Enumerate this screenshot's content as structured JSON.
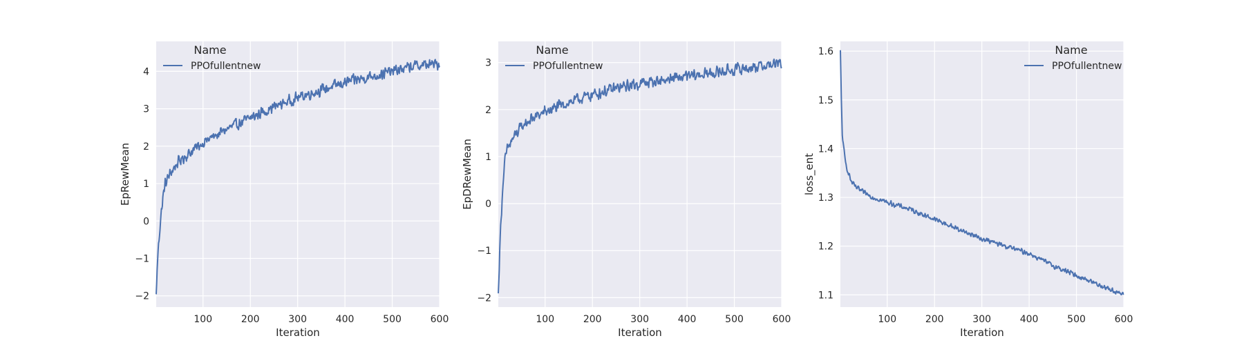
{
  "colors": {
    "plot_bg": "#EAEAF2",
    "grid": "#FFFFFF",
    "series": "#4C72B0",
    "text": "#262626"
  },
  "chart_data": [
    {
      "type": "line",
      "xlabel": "Iteration",
      "ylabel": "EpRewMean",
      "xlim": [
        1,
        600
      ],
      "ylim": [
        -2.3,
        4.8
      ],
      "xticks": [
        100,
        200,
        300,
        400,
        500,
        600
      ],
      "yticks": [
        -2,
        -1,
        0,
        1,
        2,
        3,
        4
      ],
      "ytick_labels": [
        "−2",
        "−1",
        "0",
        "1",
        "2",
        "3",
        "4"
      ],
      "grid": true,
      "legend": {
        "title": "Name",
        "placement": "top-left",
        "entries": [
          "PPOfullentnew"
        ]
      },
      "series": [
        {
          "name": "PPOfullentnew",
          "trend_x": [
            1,
            3,
            6,
            10,
            15,
            20,
            30,
            40,
            50,
            60,
            80,
            100,
            150,
            200,
            250,
            300,
            350,
            400,
            450,
            500,
            550,
            600
          ],
          "trend_y": [
            -2.0,
            -1.3,
            -0.6,
            0.0,
            0.6,
            1.0,
            1.25,
            1.45,
            1.6,
            1.7,
            1.9,
            2.1,
            2.45,
            2.75,
            3.05,
            3.3,
            3.5,
            3.7,
            3.85,
            4.0,
            4.15,
            4.2
          ],
          "noise": 0.18
        }
      ]
    },
    {
      "type": "line",
      "xlabel": "Iteration",
      "ylabel": "EpDRewMean",
      "xlim": [
        1,
        600
      ],
      "ylim": [
        -2.2,
        3.45
      ],
      "xticks": [
        100,
        200,
        300,
        400,
        500,
        600
      ],
      "yticks": [
        -2,
        -1,
        0,
        1,
        2,
        3
      ],
      "ytick_labels": [
        "−2",
        "−1",
        "0",
        "1",
        "2",
        "3"
      ],
      "grid": true,
      "legend": {
        "title": "Name",
        "placement": "top-left",
        "entries": [
          "PPOfullentnew"
        ]
      },
      "series": [
        {
          "name": "PPOfullentnew",
          "trend_x": [
            1,
            3,
            6,
            10,
            15,
            20,
            30,
            40,
            50,
            60,
            80,
            100,
            150,
            200,
            250,
            300,
            350,
            400,
            450,
            500,
            550,
            600
          ],
          "trend_y": [
            -1.95,
            -1.3,
            -0.5,
            0.3,
            0.9,
            1.15,
            1.35,
            1.5,
            1.62,
            1.72,
            1.85,
            1.95,
            2.15,
            2.32,
            2.45,
            2.55,
            2.63,
            2.7,
            2.77,
            2.85,
            2.92,
            2.98
          ],
          "noise": 0.15
        }
      ]
    },
    {
      "type": "line",
      "xlabel": "Iteration",
      "ylabel": "loss_ent",
      "xlim": [
        1,
        600
      ],
      "ylim": [
        1.075,
        1.62
      ],
      "xticks": [
        100,
        200,
        300,
        400,
        500,
        600
      ],
      "yticks": [
        1.1,
        1.2,
        1.3,
        1.4,
        1.5,
        1.6
      ],
      "ytick_labels": [
        "1.1",
        "1.2",
        "1.3",
        "1.4",
        "1.5",
        "1.6"
      ],
      "grid": true,
      "legend": {
        "title": "Name",
        "placement": "top-right",
        "entries": [
          "PPOfullentnew"
        ]
      },
      "series": [
        {
          "name": "PPOfullentnew",
          "trend_x": [
            1,
            3,
            5,
            8,
            12,
            18,
            25,
            35,
            50,
            70,
            100,
            150,
            200,
            250,
            300,
            350,
            400,
            450,
            500,
            550,
            600
          ],
          "trend_y": [
            1.6,
            1.5,
            1.43,
            1.4,
            1.37,
            1.35,
            1.33,
            1.32,
            1.31,
            1.3,
            1.29,
            1.275,
            1.255,
            1.235,
            1.215,
            1.2,
            1.185,
            1.16,
            1.14,
            1.12,
            1.1
          ],
          "noise": 0.006
        }
      ]
    }
  ]
}
